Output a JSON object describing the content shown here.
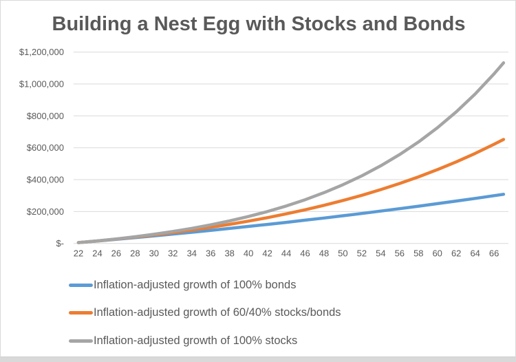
{
  "title": "Building a Nest Egg with Stocks and Bonds",
  "colors": {
    "grid": "#D9D9D9",
    "text": "#595959",
    "bonds_line": "#5B9BD5",
    "mix_line": "#ED7D31",
    "stocks_line": "#A5A5A5"
  },
  "chart_data": {
    "type": "line",
    "title": "Building a Nest Egg with Stocks and Bonds",
    "xlabel": "",
    "ylabel": "",
    "grid": true,
    "legend_position": "bottom-left",
    "xlim": [
      22,
      67
    ],
    "ylim": [
      0,
      1200000
    ],
    "x_tick_labels": [
      22,
      24,
      26,
      28,
      30,
      32,
      34,
      36,
      38,
      40,
      42,
      44,
      46,
      48,
      50,
      52,
      54,
      56,
      58,
      60,
      62,
      64,
      66
    ],
    "y_ticks": [
      {
        "value": 0,
        "label": "$-"
      },
      {
        "value": 200000,
        "label": "$200,000"
      },
      {
        "value": 400000,
        "label": "$400,000"
      },
      {
        "value": 600000,
        "label": "$600,000"
      },
      {
        "value": 800000,
        "label": "$800,000"
      },
      {
        "value": 1000000,
        "label": "$1,000,000"
      },
      {
        "value": 1200000,
        "label": "$1,200,000"
      }
    ],
    "x": [
      22,
      24,
      26,
      28,
      30,
      32,
      34,
      36,
      38,
      40,
      42,
      44,
      46,
      48,
      50,
      52,
      54,
      56,
      58,
      60,
      62,
      64,
      66,
      67
    ],
    "series": [
      {
        "name": "Inflation-adjusted growth of 100% bonds",
        "color": "#5B9BD5",
        "values": [
          5000,
          15200,
          25600,
          36300,
          47300,
          58600,
          70100,
          81900,
          94100,
          106500,
          119200,
          132300,
          145700,
          159400,
          173500,
          187900,
          202700,
          217900,
          233400,
          249300,
          265700,
          282400,
          299600,
          308300
        ]
      },
      {
        "name": "Inflation-adjusted growth of 60/40% stocks/bonds",
        "color": "#ED7D31",
        "values": [
          5000,
          15600,
          27200,
          39600,
          53100,
          67800,
          83700,
          100900,
          119500,
          139700,
          161600,
          185400,
          211100,
          239000,
          269200,
          301900,
          337400,
          375800,
          417400,
          462600,
          511500,
          564500,
          621900,
          652400
        ]
      },
      {
        "name": "Inflation-adjusted growth of 100% stocks",
        "color": "#A5A5A5",
        "values": [
          5000,
          15900,
          28200,
          42000,
          57500,
          74900,
          94400,
          116400,
          141100,
          168800,
          200000,
          235000,
          274300,
          318500,
          368200,
          424000,
          486700,
          557200,
          636300,
          725300,
          825200,
          937500,
          1063700,
          1132500
        ]
      }
    ]
  }
}
